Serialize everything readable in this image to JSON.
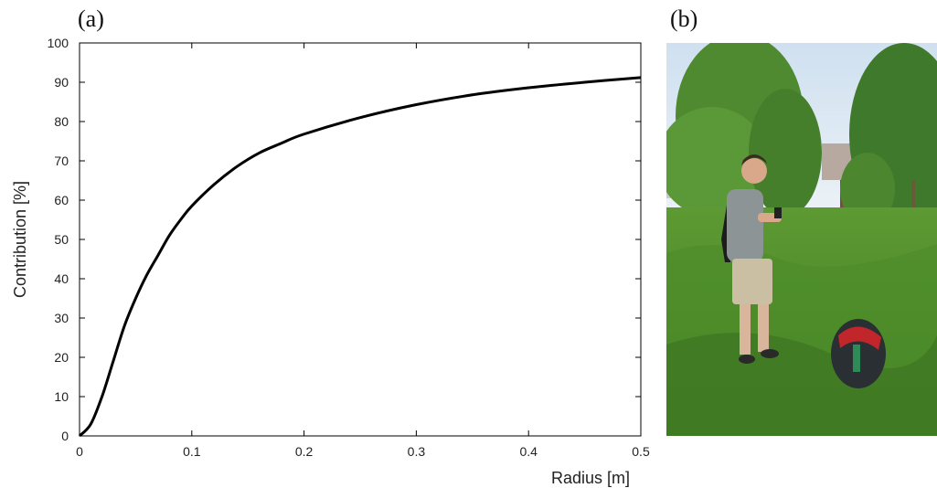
{
  "panels": {
    "a_label": "(a)",
    "b_label": "(b)"
  },
  "chart_data": {
    "type": "line",
    "xlabel": "Radius [m]",
    "ylabel": "Contribution [%]",
    "xlim": [
      0,
      0.5
    ],
    "ylim": [
      0,
      100
    ],
    "xticks": [
      "0",
      "0.1",
      "0.2",
      "0.3",
      "0.4",
      "0.5"
    ],
    "yticks": [
      "0",
      "10",
      "20",
      "30",
      "40",
      "50",
      "60",
      "70",
      "80",
      "90",
      "100"
    ],
    "grid": false,
    "series": [
      {
        "color": "#000000",
        "x": [
          0,
          0.01,
          0.02,
          0.03,
          0.04,
          0.05,
          0.06,
          0.07,
          0.08,
          0.09,
          0.1,
          0.12,
          0.14,
          0.16,
          0.18,
          0.2,
          0.25,
          0.3,
          0.35,
          0.4,
          0.45,
          0.5
        ],
        "y": [
          0,
          3,
          10,
          19,
          28,
          35,
          41,
          46,
          51,
          55,
          58.5,
          64,
          68.5,
          72,
          74.5,
          76.8,
          81,
          84.3,
          86.8,
          88.6,
          90,
          91.2
        ]
      }
    ]
  },
  "photo": {
    "subject": "person-standing-in-field-with-smartphone-and-backpack",
    "colors": {
      "sky": "#dfe9f3",
      "grass": "#4f8a2a",
      "trees": "#3f7a2c"
    }
  }
}
